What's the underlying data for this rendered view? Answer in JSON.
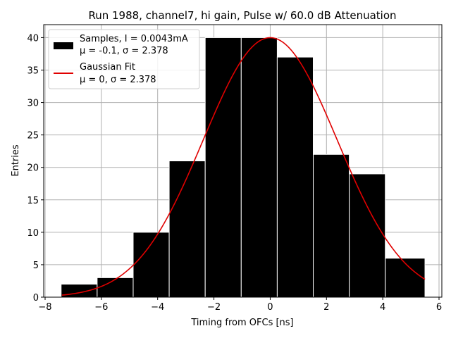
{
  "chart_data": {
    "type": "bar",
    "title": "Run 1988, channel7, hi gain, Pulse w/ 60.0 dB Attenuation",
    "xlabel": "Timing from OFCs [ns]",
    "ylabel": "Entries",
    "xlim": [
      -8.05,
      6.1
    ],
    "ylim": [
      0,
      42
    ],
    "xticks": [
      -8,
      -6,
      -4,
      -2,
      0,
      2,
      4,
      6
    ],
    "xtick_labels": [
      "−8",
      "−6",
      "−4",
      "−2",
      "0",
      "2",
      "4",
      "6"
    ],
    "yticks": [
      0,
      5,
      10,
      15,
      20,
      25,
      30,
      35,
      40
    ],
    "ytick_labels": [
      "0",
      "5",
      "10",
      "15",
      "20",
      "25",
      "30",
      "35",
      "40"
    ],
    "grid": true,
    "legend_position": "top-left",
    "bins": {
      "edges": [
        -7.43,
        -6.15,
        -4.87,
        -3.59,
        -2.31,
        -1.03,
        0.25,
        1.53,
        2.81,
        4.09,
        5.5
      ],
      "counts": [
        2,
        3,
        10,
        21,
        40,
        40,
        37,
        22,
        19,
        6
      ]
    },
    "fit": {
      "mu": 0,
      "sigma": 2.378,
      "amplitude": 40,
      "x_range": [
        -7.4,
        5.5
      ]
    },
    "legend": [
      {
        "line1": "Samples, I = 0.0043mA",
        "line2": "μ = -0.1, σ = 2.378",
        "color": "#000000"
      },
      {
        "line1": "Gaussian Fit",
        "line2": "μ = 0, σ = 2.378",
        "color": "#e00000"
      }
    ],
    "colors": {
      "bars": "#000000",
      "bar_edge": "#ffffff",
      "fit": "#e00000",
      "grid": "#b0b0b0"
    }
  }
}
